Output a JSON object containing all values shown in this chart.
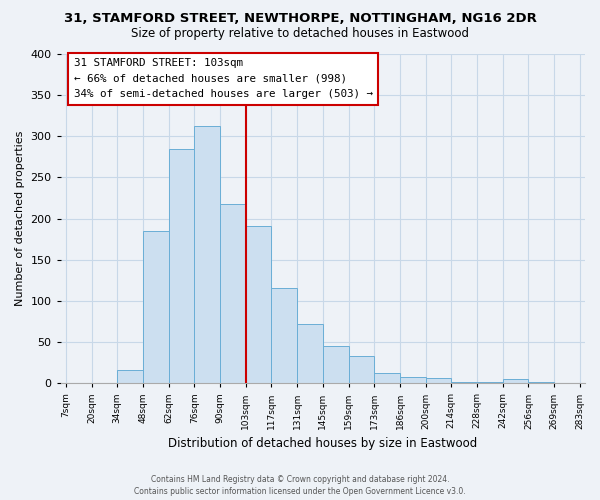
{
  "title": "31, STAMFORD STREET, NEWTHORPE, NOTTINGHAM, NG16 2DR",
  "subtitle": "Size of property relative to detached houses in Eastwood",
  "xlabel": "Distribution of detached houses by size in Eastwood",
  "ylabel": "Number of detached properties",
  "bar_color": "#ccdff0",
  "bar_edge_color": "#6aaed6",
  "background_color": "#eef2f7",
  "grid_color": "#c8d8e8",
  "tick_labels": [
    "7sqm",
    "20sqm",
    "34sqm",
    "48sqm",
    "62sqm",
    "76sqm",
    "90sqm",
    "103sqm",
    "117sqm",
    "131sqm",
    "145sqm",
    "159sqm",
    "173sqm",
    "186sqm",
    "200sqm",
    "214sqm",
    "228sqm",
    "242sqm",
    "256sqm",
    "269sqm",
    "283sqm"
  ],
  "bar_heights": [
    0,
    0,
    16,
    185,
    285,
    313,
    218,
    191,
    116,
    72,
    45,
    33,
    12,
    8,
    6,
    2,
    2,
    5,
    2,
    0,
    0
  ],
  "ylim": [
    0,
    400
  ],
  "yticks": [
    0,
    50,
    100,
    150,
    200,
    250,
    300,
    350,
    400
  ],
  "property_line_idx": 7,
  "annotation_title": "31 STAMFORD STREET: 103sqm",
  "annotation_line1": "← 66% of detached houses are smaller (998)",
  "annotation_line2": "34% of semi-detached houses are larger (503) →",
  "annotation_box_color": "#ffffff",
  "annotation_border_color": "#cc0000",
  "property_line_color": "#cc0000",
  "footer1": "Contains HM Land Registry data © Crown copyright and database right 2024.",
  "footer2": "Contains public sector information licensed under the Open Government Licence v3.0."
}
